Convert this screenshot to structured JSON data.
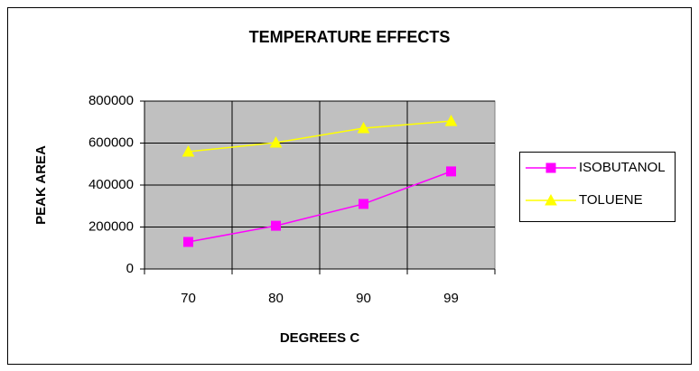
{
  "chart_data": {
    "type": "line",
    "title": "TEMPERATURE EFFECTS",
    "x_label": "DEGREES C",
    "y_label": "PEAK AREA",
    "categories": [
      "70",
      "80",
      "90",
      "99"
    ],
    "series": [
      {
        "name": "ISOBUTANOL",
        "color": "#ff00ff",
        "marker": "square",
        "values": [
          129000,
          206000,
          310000,
          465000
        ]
      },
      {
        "name": "TOLUENE",
        "color": "#ffff00",
        "marker": "triangle",
        "values": [
          559000,
          602000,
          671000,
          705000
        ]
      }
    ],
    "ylim": [
      0,
      800000
    ],
    "yticks": [
      0,
      200000,
      400000,
      600000,
      800000
    ],
    "grid": true,
    "legend": "right"
  }
}
